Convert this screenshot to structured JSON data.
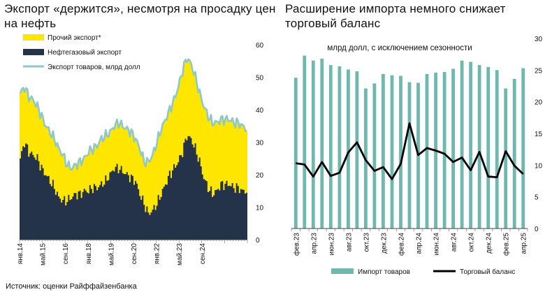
{
  "left_chart": {
    "title": "Экспорт «держится», несмотря на просадку цен на нефть",
    "chart_data": {
      "type": "area",
      "x_tick_labels": [
        "янв.14",
        "май.15",
        "сен.16",
        "янв.18",
        "май.19",
        "сен.20",
        "янв.22",
        "май.23",
        "сен.24"
      ],
      "y_right_ticks": [
        0,
        10,
        20,
        30,
        40,
        50,
        60
      ],
      "ylim": [
        0,
        60
      ],
      "legend_placement": "top-left",
      "colors": {
        "other_export": "#ffe600",
        "oil_gas_export": "#24324a",
        "total_line": "#8ec8c8"
      },
      "series": [
        {
          "name": "Прочий экспорт*",
          "kind": "stacked-area",
          "values": "total minus oil-gas"
        },
        {
          "name": "Нефтегазовый экспорт",
          "kind": "stacked-area",
          "anchors": [
            [
              0,
              25
            ],
            [
              3,
              30
            ],
            [
              6,
              27
            ],
            [
              9,
              26
            ],
            [
              12,
              25
            ],
            [
              15,
              22
            ],
            [
              18,
              20
            ],
            [
              21,
              18
            ],
            [
              24,
              16
            ],
            [
              27,
              13
            ],
            [
              30,
              12
            ],
            [
              33,
              12
            ],
            [
              36,
              13
            ],
            [
              39,
              14
            ],
            [
              42,
              14
            ],
            [
              45,
              15
            ],
            [
              48,
              15
            ],
            [
              51,
              16
            ],
            [
              54,
              16
            ],
            [
              57,
              17
            ],
            [
              60,
              18
            ],
            [
              63,
              20
            ],
            [
              66,
              22
            ],
            [
              69,
              22
            ],
            [
              72,
              21
            ],
            [
              75,
              20
            ],
            [
              78,
              19
            ],
            [
              81,
              18
            ],
            [
              84,
              14
            ],
            [
              87,
              11
            ],
            [
              90,
              8
            ],
            [
              93,
              9
            ],
            [
              96,
              11
            ],
            [
              99,
              14
            ],
            [
              102,
              17
            ],
            [
              105,
              20
            ],
            [
              108,
              22
            ],
            [
              111,
              24
            ],
            [
              114,
              27
            ],
            [
              117,
              32
            ],
            [
              120,
              31
            ],
            [
              123,
              28
            ],
            [
              126,
              24
            ],
            [
              129,
              19
            ],
            [
              132,
              16
            ],
            [
              135,
              14
            ],
            [
              138,
              15
            ],
            [
              141,
              17
            ],
            [
              144,
              17
            ],
            [
              147,
              17
            ],
            [
              150,
              16
            ],
            [
              153,
              16
            ],
            [
              156,
              15
            ],
            [
              159,
              15
            ]
          ]
        },
        {
          "name": "Экспорт товаров, млрд долл",
          "kind": "line",
          "anchors": [
            [
              0,
              45
            ],
            [
              3,
              47
            ],
            [
              6,
              44
            ],
            [
              9,
              43
            ],
            [
              12,
              41
            ],
            [
              15,
              38
            ],
            [
              18,
              35
            ],
            [
              21,
              33
            ],
            [
              24,
              31
            ],
            [
              27,
              28
            ],
            [
              30,
              26
            ],
            [
              33,
              23
            ],
            [
              36,
              22
            ],
            [
              39,
              23
            ],
            [
              42,
              24
            ],
            [
              45,
              25
            ],
            [
              48,
              27
            ],
            [
              51,
              28
            ],
            [
              54,
              29
            ],
            [
              57,
              31
            ],
            [
              60,
              32
            ],
            [
              63,
              33
            ],
            [
              66,
              35
            ],
            [
              69,
              36
            ],
            [
              72,
              35
            ],
            [
              75,
              34
            ],
            [
              78,
              33
            ],
            [
              81,
              31
            ],
            [
              84,
              28
            ],
            [
              87,
              24
            ],
            [
              90,
              24
            ],
            [
              93,
              26
            ],
            [
              96,
              30
            ],
            [
              99,
              34
            ],
            [
              102,
              37
            ],
            [
              105,
              40
            ],
            [
              108,
              43
            ],
            [
              111,
              47
            ],
            [
              114,
              52
            ],
            [
              117,
              56
            ],
            [
              120,
              54
            ],
            [
              123,
              50
            ],
            [
              126,
              45
            ],
            [
              129,
              41
            ],
            [
              132,
              38
            ],
            [
              135,
              36
            ],
            [
              138,
              36
            ],
            [
              141,
              37
            ],
            [
              144,
              37
            ],
            [
              147,
              37
            ],
            [
              150,
              36
            ],
            [
              153,
              36
            ],
            [
              156,
              35
            ],
            [
              159,
              34
            ]
          ]
        }
      ]
    }
  },
  "right_chart": {
    "title": "Расширение импорта немного снижает торговый баланс",
    "subtitle": "млрд долл, с исключением сезонности",
    "chart_data": {
      "type": "bar",
      "categories": [
        "фев.23",
        "мар.23",
        "апр.23",
        "май.23",
        "июн.23",
        "июл.23",
        "авг.23",
        "сен.23",
        "окт.23",
        "ноя.23",
        "дек.23",
        "янв.24",
        "фев.24",
        "мар.24",
        "апр.24",
        "май.24",
        "июн.24",
        "июл.24",
        "авг.24",
        "сен.24",
        "окт.24",
        "ноя.24",
        "дек.24",
        "янв.25",
        "фев.25",
        "мар.25",
        "апр.25"
      ],
      "x_tick_labels": [
        "фев.23",
        "апр.23",
        "июн.23",
        "авг.23",
        "окт.23",
        "дек.23",
        "фев.24",
        "апр.24",
        "июн.24",
        "авг.24",
        "окт.24",
        "дек.24",
        "фев.25",
        "апр.25"
      ],
      "y_right_ticks": [
        0,
        5,
        10,
        15,
        20,
        25,
        30
      ],
      "ylim": [
        0,
        30
      ],
      "colors": {
        "imports": "#6fb8b0",
        "balance": "#000000"
      },
      "series": [
        {
          "name": "Импорт товаров",
          "kind": "bar",
          "values": [
            23.8,
            27.3,
            26.5,
            26.8,
            25.8,
            25.6,
            25.1,
            24.8,
            22.1,
            22.9,
            24.4,
            24.2,
            24.1,
            23.1,
            23.0,
            24.4,
            24.6,
            24.7,
            25.2,
            26.5,
            26.3,
            25.8,
            25.5,
            25.0,
            22.1,
            23.6,
            25.3
          ]
        },
        {
          "name": "Торговый баланс",
          "kind": "line",
          "values": [
            10.3,
            10.1,
            8.2,
            10.5,
            8.3,
            8.8,
            12.0,
            13.6,
            10.8,
            9.1,
            9.7,
            7.8,
            10.2,
            16.6,
            11.6,
            12.7,
            12.3,
            11.8,
            10.5,
            11.2,
            9.2,
            12.1,
            8.2,
            8.1,
            12.2,
            9.9,
            8.6
          ]
        }
      ]
    }
  },
  "source": "Источник: оценки Райффайзенбанка"
}
